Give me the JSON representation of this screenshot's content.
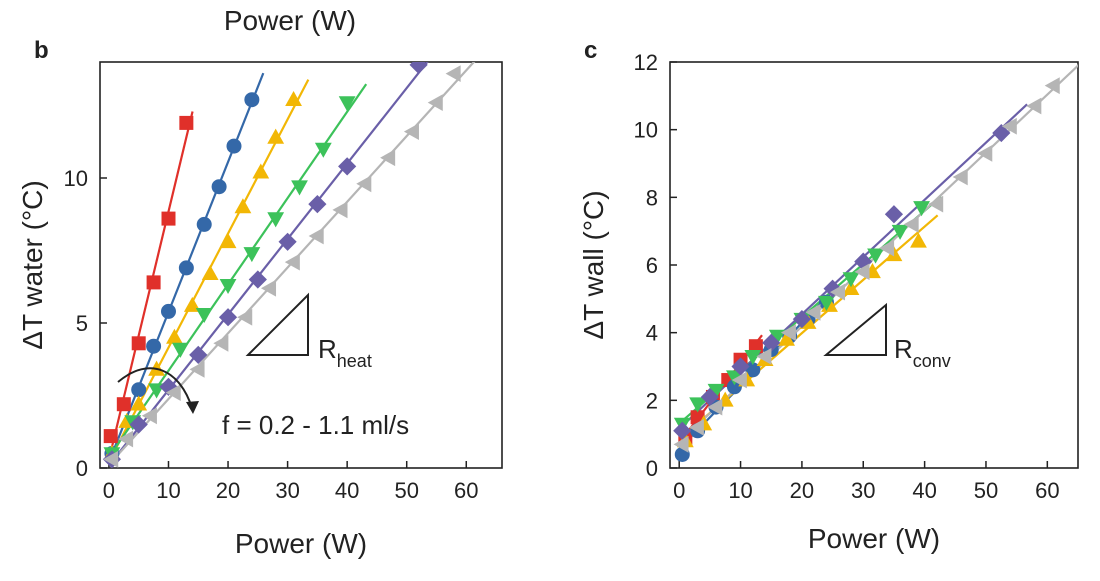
{
  "top_caption": "Power (W)",
  "chart_data": [
    {
      "panel": "b",
      "type": "scatter",
      "xlabel": "Power (W)",
      "ylabel": "ΔT water (°C)",
      "xlim": [
        -1.5,
        66
      ],
      "ylim": [
        0,
        14
      ],
      "xticks": [
        0,
        10,
        20,
        30,
        40,
        50,
        60
      ],
      "yticks": [
        0,
        5,
        10
      ],
      "grid": false,
      "annotations": {
        "r_main": "R",
        "r_sub": "heat",
        "flow_text": "f = 0.2 - 1.1 ml/s"
      },
      "series": [
        {
          "marker": "square",
          "color": "#e0302a",
          "x": [
            0.3,
            2.5,
            5.0,
            7.5,
            10.0,
            13.0
          ],
          "y": [
            1.1,
            2.2,
            4.3,
            6.4,
            8.6,
            11.9
          ]
        },
        {
          "marker": "circle",
          "color": "#3468a8",
          "x": [
            0.5,
            5.0,
            7.5,
            10.0,
            13.0,
            16.0,
            18.5,
            21.0,
            24.0
          ],
          "y": [
            0.5,
            2.7,
            4.2,
            5.4,
            6.9,
            8.4,
            9.7,
            11.1,
            12.7
          ]
        },
        {
          "marker": "triangle-up",
          "color": "#f2b705",
          "x": [
            0.5,
            3.0,
            5.0,
            8.0,
            11.0,
            14.0,
            17.0,
            20.0,
            22.5,
            25.5,
            28.0,
            31.0
          ],
          "y": [
            0.5,
            1.6,
            2.2,
            3.4,
            4.5,
            5.6,
            6.7,
            7.8,
            9.0,
            10.2,
            11.4,
            12.7
          ]
        },
        {
          "marker": "triangle-down",
          "color": "#3cc25a",
          "x": [
            0.5,
            4.0,
            8.0,
            12.0,
            16.0,
            20.0,
            24.0,
            28.0,
            32.0,
            36.0,
            40.0
          ],
          "y": [
            0.5,
            1.6,
            2.7,
            4.1,
            5.3,
            6.3,
            7.4,
            8.6,
            9.7,
            11.0,
            12.6
          ]
        },
        {
          "marker": "diamond",
          "color": "#6a5fa8",
          "x": [
            0.5,
            5.0,
            10.0,
            15.0,
            20.0,
            25.0,
            30.0,
            35.0,
            40.0,
            52.0
          ],
          "y": [
            0.3,
            1.5,
            2.8,
            3.9,
            5.2,
            6.5,
            7.8,
            9.1,
            10.4,
            13.9
          ]
        },
        {
          "marker": "triangle-left",
          "color": "#b5b5b5",
          "x": [
            0.5,
            3.0,
            7.0,
            11.0,
            15.0,
            19.0,
            23.0,
            27.0,
            31.0,
            35.0,
            39.0,
            43.0,
            47.0,
            51.0,
            55.0,
            58.0
          ],
          "y": [
            0.3,
            1.0,
            1.8,
            2.6,
            3.4,
            4.3,
            5.2,
            6.2,
            7.1,
            8.0,
            8.9,
            9.8,
            10.7,
            11.6,
            12.6,
            13.6
          ]
        }
      ]
    },
    {
      "panel": "c",
      "type": "scatter",
      "xlabel": "Power (W)",
      "ylabel": "ΔT wall (°C)",
      "xlim": [
        -1.5,
        65
      ],
      "ylim": [
        0,
        12
      ],
      "xticks": [
        0,
        10,
        20,
        30,
        40,
        50,
        60
      ],
      "yticks": [
        0,
        2,
        4,
        6,
        8,
        10,
        12
      ],
      "grid": false,
      "annotations": {
        "r_main": "R",
        "r_sub": "conv"
      },
      "series": [
        {
          "marker": "square",
          "color": "#e0302a",
          "x": [
            1.0,
            3.0,
            5.5,
            8.0,
            10.0,
            12.5
          ],
          "y": [
            0.9,
            1.5,
            2.1,
            2.6,
            3.2,
            3.6
          ]
        },
        {
          "marker": "circle",
          "color": "#3468a8",
          "x": [
            0.5,
            3.0,
            6.0,
            9.0,
            12.0,
            15.0,
            18.0,
            21.0,
            24.0
          ],
          "y": [
            0.4,
            1.1,
            1.8,
            2.4,
            2.9,
            3.5,
            3.9,
            4.4,
            4.9
          ]
        },
        {
          "marker": "triangle-up",
          "color": "#f2b705",
          "x": [
            1.0,
            4.0,
            7.5,
            11.0,
            14.0,
            17.5,
            21.0,
            24.5,
            28.0,
            31.5,
            35.0,
            39.0
          ],
          "y": [
            0.8,
            1.3,
            2.0,
            2.6,
            3.2,
            3.8,
            4.3,
            4.8,
            5.3,
            5.8,
            6.3,
            6.7
          ]
        },
        {
          "marker": "triangle-down",
          "color": "#3cc25a",
          "x": [
            0.5,
            3.0,
            6.0,
            9.0,
            12.0,
            16.0,
            20.0,
            24.0,
            28.0,
            32.0,
            36.0,
            39.5
          ],
          "y": [
            1.3,
            1.9,
            2.3,
            2.7,
            3.3,
            3.9,
            4.4,
            4.9,
            5.6,
            6.3,
            7.0,
            7.7
          ]
        },
        {
          "marker": "diamond",
          "color": "#6a5fa8",
          "x": [
            0.5,
            5.0,
            10.0,
            15.0,
            20.0,
            25.0,
            30.0,
            35.0,
            52.5
          ],
          "y": [
            1.1,
            2.1,
            3.0,
            3.7,
            4.4,
            5.3,
            6.1,
            7.5,
            9.9
          ]
        },
        {
          "marker": "triangle-left",
          "color": "#b5b5b5",
          "x": [
            0.5,
            3.0,
            6.0,
            10.0,
            14.0,
            18.0,
            22.0,
            26.0,
            30.0,
            34.0,
            38.0,
            42.0,
            46.0,
            50.0,
            54.0,
            58.0,
            61.0
          ],
          "y": [
            0.7,
            1.2,
            1.8,
            2.6,
            3.3,
            4.0,
            4.6,
            5.2,
            5.8,
            6.5,
            7.2,
            7.8,
            8.6,
            9.3,
            10.1,
            10.7,
            11.3
          ]
        }
      ]
    }
  ]
}
